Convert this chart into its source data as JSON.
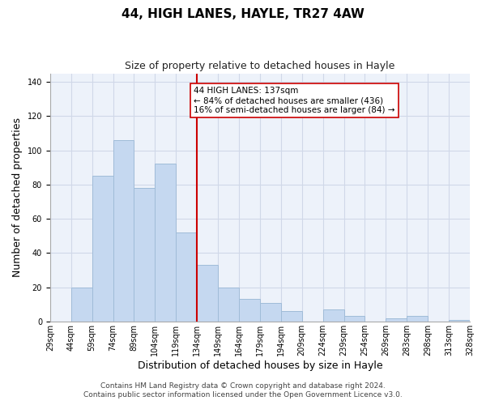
{
  "title": "44, HIGH LANES, HAYLE, TR27 4AW",
  "subtitle": "Size of property relative to detached houses in Hayle",
  "xlabel": "Distribution of detached houses by size in Hayle",
  "ylabel": "Number of detached properties",
  "bin_labels": [
    "29sqm",
    "44sqm",
    "59sqm",
    "74sqm",
    "89sqm",
    "104sqm",
    "119sqm",
    "134sqm",
    "149sqm",
    "164sqm",
    "179sqm",
    "194sqm",
    "209sqm",
    "224sqm",
    "239sqm",
    "254sqm",
    "269sqm",
    "283sqm",
    "298sqm",
    "313sqm",
    "328sqm"
  ],
  "bar_heights": [
    0,
    20,
    85,
    106,
    78,
    92,
    52,
    33,
    20,
    13,
    11,
    6,
    0,
    7,
    3,
    0,
    2,
    3,
    0,
    1,
    0
  ],
  "bar_color": "#c5d8f0",
  "bar_edge_color": "#a0bcd8",
  "bar_edge_width": 0.7,
  "vline_x_index": 7,
  "vline_color": "#cc0000",
  "annotation_line1": "44 HIGH LANES: 137sqm",
  "annotation_line2": "← 84% of detached houses are smaller (436)",
  "annotation_line3": "16% of semi-detached houses are larger (84) →",
  "annotation_box_edgecolor": "#cc0000",
  "annotation_box_facecolor": "#ffffff",
  "ylim": [
    0,
    145
  ],
  "yticks": [
    0,
    20,
    40,
    60,
    80,
    100,
    120,
    140
  ],
  "footer_line1": "Contains HM Land Registry data © Crown copyright and database right 2024.",
  "footer_line2": "Contains public sector information licensed under the Open Government Licence v3.0.",
  "background_color": "#ffffff",
  "grid_color": "#d0d8e8",
  "plot_bg_color": "#edf2fa",
  "title_fontsize": 11,
  "subtitle_fontsize": 9,
  "axis_label_fontsize": 9,
  "tick_fontsize": 7,
  "annotation_fontsize": 7.5,
  "footer_fontsize": 6.5
}
